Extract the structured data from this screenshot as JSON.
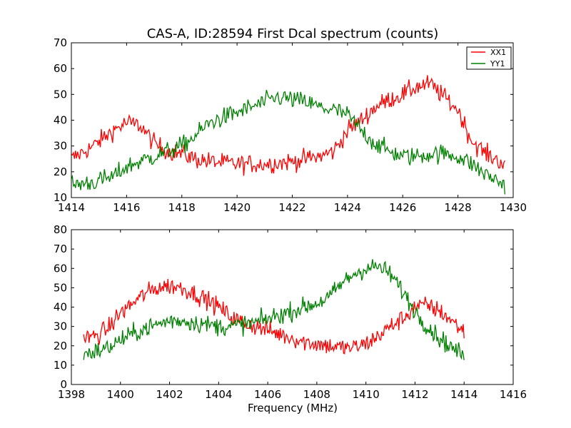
{
  "chart_data": [
    {
      "type": "line",
      "title": "CAS-A, ID:28594 First Dcal spectrum (counts)",
      "xlabel": "",
      "ylabel": "",
      "xlim": [
        1414,
        1430
      ],
      "ylim": [
        10,
        70
      ],
      "xticks": [
        "1414",
        "1416",
        "1418",
        "1420",
        "1422",
        "1424",
        "1426",
        "1428",
        "1430"
      ],
      "yticks": [
        "10",
        "20",
        "30",
        "40",
        "50",
        "60",
        "70"
      ],
      "legend": "top-right",
      "grid": false,
      "series": [
        {
          "name": "XX1",
          "color": "#ff0000",
          "x": [
            1414.0,
            1414.8,
            1415.5,
            1416.0,
            1416.5,
            1417.0,
            1417.5,
            1418.0,
            1418.5,
            1419.0,
            1420.0,
            1421.0,
            1422.0,
            1423.0,
            1423.5,
            1424.0,
            1424.5,
            1425.0,
            1425.5,
            1426.0,
            1426.5,
            1427.0,
            1427.5,
            1428.0,
            1428.5,
            1429.0,
            1429.7
          ],
          "values": [
            25,
            30,
            36,
            39,
            38,
            31,
            28,
            27,
            25,
            24,
            23,
            23,
            24,
            26,
            28,
            36,
            40,
            45,
            48,
            50,
            53,
            54,
            49,
            44,
            32,
            27,
            23
          ]
        },
        {
          "name": "YY1",
          "color": "#008000",
          "x": [
            1414.0,
            1414.8,
            1415.5,
            1416.0,
            1417.0,
            1418.0,
            1418.5,
            1419.0,
            1420.0,
            1421.0,
            1421.5,
            1422.0,
            1422.5,
            1423.0,
            1423.5,
            1424.0,
            1424.5,
            1425.0,
            1425.5,
            1426.0,
            1426.5,
            1427.0,
            1427.5,
            1428.0,
            1428.5,
            1429.0,
            1429.7
          ],
          "values": [
            15,
            16,
            18,
            22,
            26,
            30,
            34,
            39,
            43,
            47,
            49,
            48,
            47,
            45,
            44,
            42,
            36,
            31,
            28,
            26,
            26,
            27,
            27,
            26,
            23,
            19,
            15
          ]
        }
      ]
    },
    {
      "type": "line",
      "title": "",
      "xlabel": "Frequency (MHz)",
      "ylabel": "",
      "xlim": [
        1398,
        1416
      ],
      "ylim": [
        0,
        80
      ],
      "xticks": [
        "1398",
        "1400",
        "1402",
        "1404",
        "1406",
        "1408",
        "1410",
        "1412",
        "1414",
        "1416"
      ],
      "yticks": [
        "0",
        "10",
        "20",
        "30",
        "40",
        "50",
        "60",
        "70",
        "80"
      ],
      "grid": false,
      "series": [
        {
          "name": "XX1",
          "color": "#ff0000",
          "x": [
            1398.5,
            1399.0,
            1399.5,
            1400.0,
            1400.5,
            1401.0,
            1401.5,
            1402.0,
            1402.5,
            1403.0,
            1403.5,
            1404.0,
            1404.5,
            1405.0,
            1405.5,
            1406.0,
            1406.5,
            1407.0,
            1407.5,
            1408.0,
            1408.5,
            1409.0,
            1409.5,
            1410.0,
            1410.5,
            1411.0,
            1411.5,
            1412.0,
            1412.5,
            1413.0,
            1413.5,
            1414.0
          ],
          "values": [
            24,
            25,
            29,
            37,
            42,
            47,
            50,
            51,
            50,
            47,
            44,
            40,
            35,
            32,
            30,
            28,
            26,
            24,
            22,
            21,
            20,
            19,
            19,
            21,
            25,
            30,
            34,
            40,
            41,
            38,
            33,
            27
          ]
        },
        {
          "name": "YY1",
          "color": "#008000",
          "x": [
            1398.5,
            1399.0,
            1399.5,
            1400.0,
            1400.5,
            1401.0,
            1401.5,
            1402.0,
            1402.5,
            1403.0,
            1403.5,
            1404.0,
            1404.5,
            1405.0,
            1405.5,
            1406.0,
            1406.5,
            1407.0,
            1407.5,
            1408.0,
            1408.5,
            1409.0,
            1409.5,
            1410.0,
            1410.5,
            1411.0,
            1411.5,
            1412.0,
            1412.5,
            1413.0,
            1413.5,
            1414.0
          ],
          "values": [
            16,
            17,
            19,
            23,
            26,
            29,
            31,
            33,
            33,
            32,
            31,
            30,
            30,
            31,
            32,
            34,
            36,
            38,
            40,
            42,
            45,
            52,
            57,
            60,
            61,
            57,
            48,
            38,
            30,
            24,
            19,
            15
          ]
        }
      ]
    }
  ]
}
